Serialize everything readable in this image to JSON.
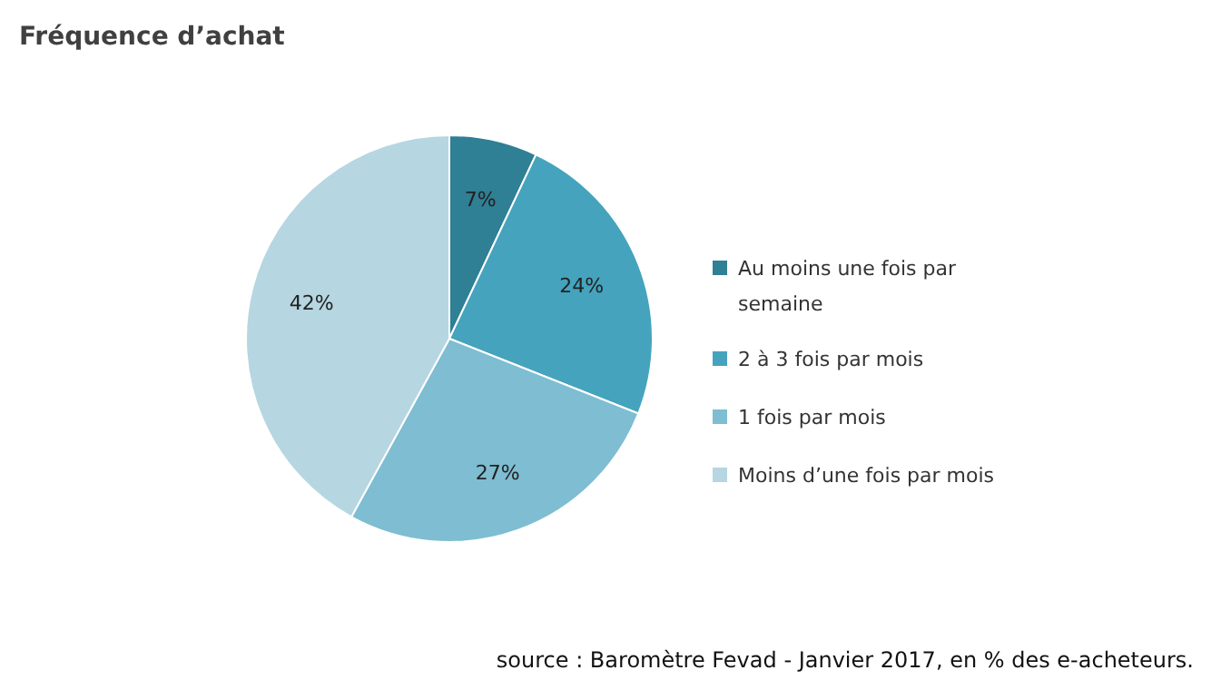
{
  "chart_data": {
    "type": "pie",
    "title": "Fréquence d’achat",
    "categories": [
      "Au moins une fois par semaine",
      "2 à 3 fois par mois",
      "1 fois par mois",
      "Moins d’une fois par mois"
    ],
    "values": [
      7,
      24,
      27,
      42
    ],
    "colors": [
      "#2f7f95",
      "#45a3bd",
      "#7ebdd2",
      "#b6d6e1"
    ],
    "value_labels": [
      "7%",
      "24%",
      "27%",
      "42%"
    ],
    "legend": "right",
    "annotations": [
      "source : Baromètre Fevad - Janvier 2017, en % des e-acheteurs."
    ]
  }
}
